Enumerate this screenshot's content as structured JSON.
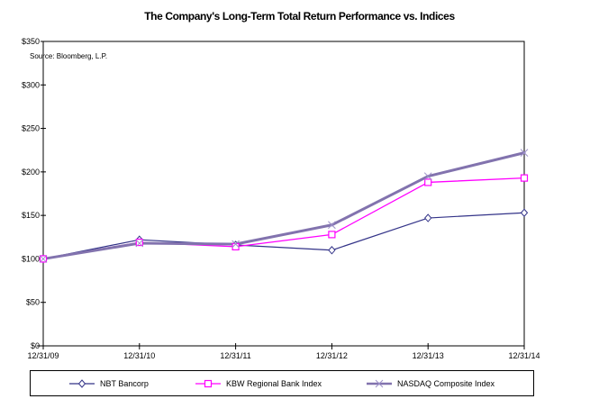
{
  "chart_data": {
    "type": "line",
    "title": "The Company's Long-Term Total Return Performance vs. Indices",
    "source_note": "Source:  Bloomberg, L.P.",
    "categories": [
      "12/31/09",
      "12/31/10",
      "12/31/11",
      "12/31/12",
      "12/31/13",
      "12/31/14"
    ],
    "series": [
      {
        "name": "NBT Bancorp",
        "color": "#333388",
        "marker": "diamond",
        "marker_fill": "#ffffff",
        "line_width": 1.2,
        "values": [
          100,
          122,
          116,
          110,
          147,
          153
        ]
      },
      {
        "name": "KBW Regional Bank Index",
        "color": "#FF00FF",
        "marker": "square",
        "marker_fill": "#ffffff",
        "line_width": 1.3,
        "values": [
          100,
          119,
          114,
          128,
          188,
          193
        ]
      },
      {
        "name": "NASDAQ Composite Index",
        "color": "#8273AE",
        "marker": "x",
        "marker_color": "#9C90C8",
        "line_width": 3,
        "values": [
          100,
          118,
          117,
          139,
          195,
          222
        ]
      }
    ],
    "xlabel": "",
    "ylabel": "",
    "ylim": [
      0,
      350
    ],
    "yticks": [
      {
        "label": "$0",
        "value": 0
      },
      {
        "label": "$50",
        "value": 50
      },
      {
        "label": "$100",
        "value": 100
      },
      {
        "label": "$150",
        "value": 150
      },
      {
        "label": "$200",
        "value": 200
      },
      {
        "label": "$250",
        "value": 250
      },
      {
        "label": "$300",
        "value": 300
      },
      {
        "label": "$350",
        "value": 350
      }
    ],
    "grid": false,
    "legend_position": "bottom",
    "axis_color": "#000000",
    "background_color": "#ffffff"
  }
}
